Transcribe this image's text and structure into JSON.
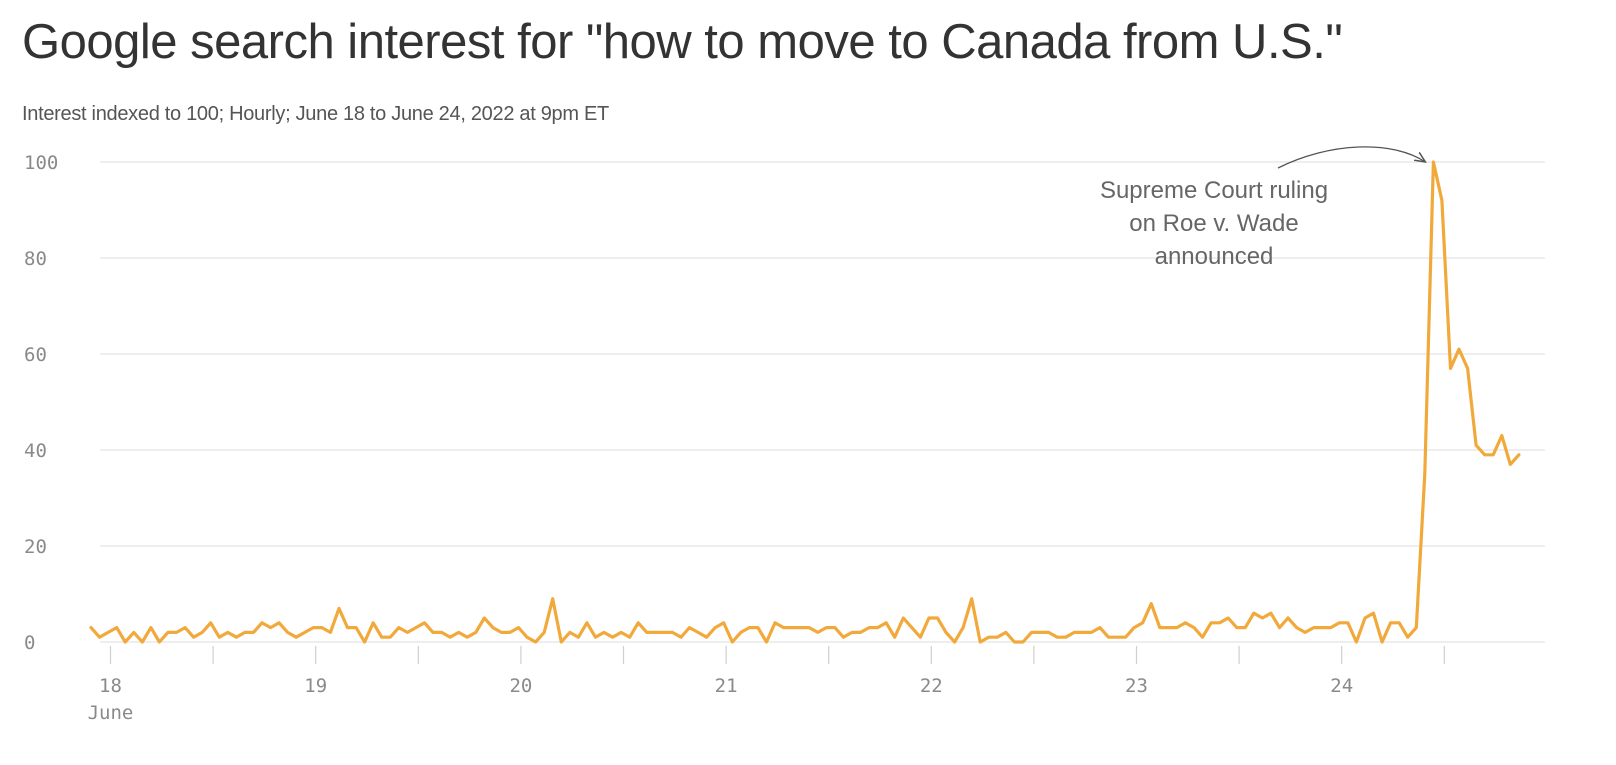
{
  "title": "Google search interest for \"how to move to Canada from U.S.\"",
  "subtitle": "Interest indexed to 100; Hourly; June 18 to June 24, 2022 at 9pm ET",
  "colors": {
    "line": "#f2a93b",
    "grid": "#e3e3e3",
    "axis_text": "#8a8a8a",
    "title": "#333333"
  },
  "chart_data": {
    "type": "line",
    "title": "Google search interest for \"how to move to Canada from U.S.\"",
    "subtitle": "Interest indexed to 100; Hourly; June 18 to June 24, 2022 at 9pm ET",
    "ylim": [
      0,
      100
    ],
    "yticks": [
      "0",
      "20",
      "40",
      "60",
      "80",
      "100"
    ],
    "xticks": [
      {
        "label": "18",
        "sub": "June",
        "day": 0
      },
      {
        "label": "19",
        "day": 1
      },
      {
        "label": "20",
        "day": 2
      },
      {
        "label": "21",
        "day": 3
      },
      {
        "label": "22",
        "day": 4
      },
      {
        "label": "23",
        "day": 5
      },
      {
        "label": "24",
        "day": 6
      }
    ],
    "grid": true,
    "series": [
      {
        "values": [
          3,
          1,
          2,
          3,
          0,
          2,
          0,
          3,
          0,
          2,
          2,
          3,
          1,
          2,
          4,
          1,
          2,
          1,
          2,
          2,
          4,
          3,
          4,
          2,
          1,
          2,
          3,
          3,
          2,
          7,
          3,
          3,
          0,
          4,
          1,
          1,
          3,
          2,
          3,
          4,
          2,
          2,
          1,
          2,
          1,
          2,
          5,
          3,
          2,
          2,
          3,
          1,
          0,
          2,
          9,
          0,
          2,
          1,
          4,
          1,
          2,
          1,
          2,
          1,
          4,
          2,
          2,
          2,
          2,
          1,
          3,
          2,
          1,
          3,
          4,
          0,
          2,
          3,
          3,
          0,
          4,
          3,
          3,
          3,
          3,
          2,
          3,
          3,
          1,
          2,
          2,
          3,
          3,
          4,
          1,
          5,
          3,
          1,
          5,
          5,
          2,
          0,
          3,
          9,
          0,
          1,
          1,
          2,
          0,
          0,
          2,
          2,
          2,
          1,
          1,
          2,
          2,
          2,
          3,
          1,
          1,
          1,
          3,
          4,
          8,
          3,
          3,
          3,
          4,
          3,
          1,
          4,
          4,
          5,
          3,
          3,
          6,
          5,
          6,
          3,
          5,
          3,
          2,
          3,
          3,
          3,
          4,
          4,
          0,
          5,
          6,
          0,
          4,
          4,
          1,
          3,
          35,
          100,
          92,
          57,
          61,
          57,
          41,
          39,
          39,
          43,
          37,
          39
        ]
      }
    ],
    "annotation": {
      "lines": [
        "Supreme Court ruling",
        "on Roe v. Wade",
        "announced"
      ],
      "target_value": 100
    }
  }
}
